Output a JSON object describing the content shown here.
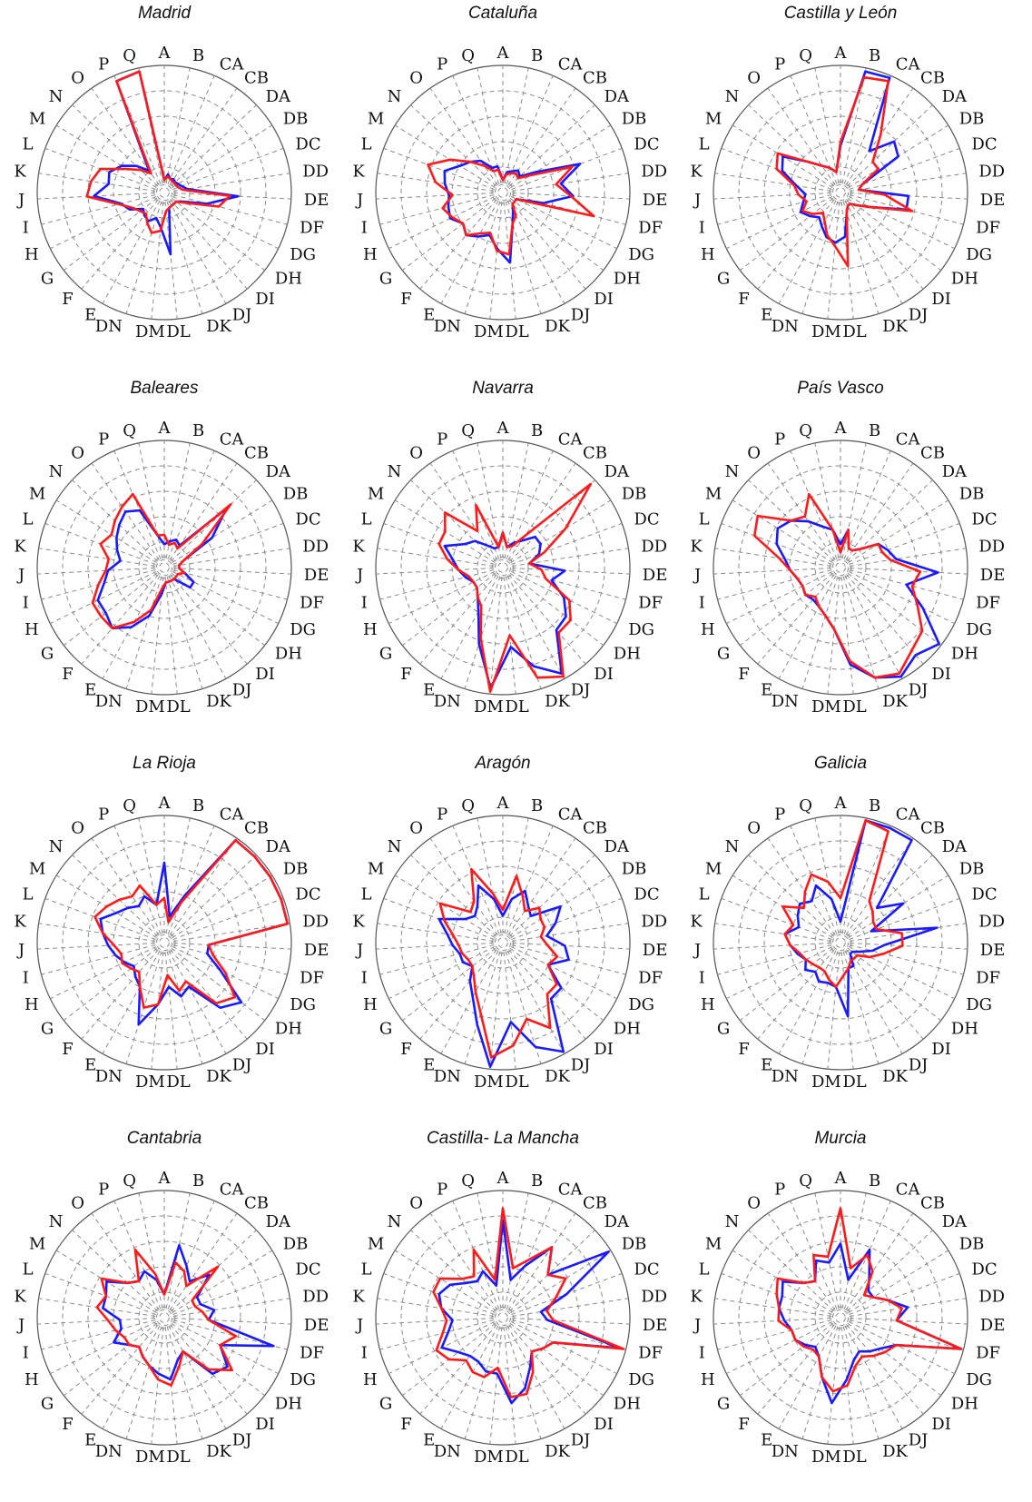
{
  "header_text": "",
  "chart_data": {
    "type": "radar",
    "axes": [
      "A",
      "B",
      "CA",
      "CB",
      "DA",
      "DB",
      "DC",
      "DD",
      "DE",
      "DF",
      "DG",
      "DH",
      "DI",
      "DJ",
      "DK",
      "DL",
      "DM",
      "DN",
      "E",
      "F",
      "G",
      "H",
      "I",
      "J",
      "K",
      "L",
      "M",
      "N",
      "O",
      "P",
      "Q"
    ],
    "rmax": 1.0,
    "rings": 5,
    "grid": true,
    "colors": {
      "series_1": "#1a1aff",
      "series_2": "#ff1a1a"
    },
    "panels": [
      {
        "title": "Madrid",
        "series": [
          {
            "color": "#1a1aff",
            "values": [
              0.03,
              0.08,
              0.05,
              0.06,
              0.05,
              0.06,
              0.08,
              0.12,
              0.55,
              0.3,
              0.1,
              0.05,
              0.05,
              0.05,
              0.06,
              0.45,
              0.22,
              0.15,
              0.2,
              0.18,
              0.15,
              0.25,
              0.3,
              0.52,
              0.4,
              0.42,
              0.35,
              0.25,
              0.15,
              0.95,
              0.97
            ]
          },
          {
            "color": "#ff1a1a",
            "values": [
              0.03,
              0.06,
              0.05,
              0.04,
              0.04,
              0.04,
              0.05,
              0.08,
              0.48,
              0.4,
              0.12,
              0.05,
              0.05,
              0.05,
              0.06,
              0.08,
              0.25,
              0.28,
              0.22,
              0.16,
              0.18,
              0.22,
              0.32,
              0.58,
              0.55,
              0.5,
              0.3,
              0.2,
              0.12,
              0.95,
              0.97
            ]
          }
        ]
      },
      {
        "title": "Cataluña",
        "series": [
          {
            "color": "#1a1aff",
            "values": [
              0.03,
              0.1,
              0.12,
              0.15,
              0.12,
              0.25,
              0.62,
              0.42,
              0.52,
              0.28,
              0.05,
              0.05,
              0.05,
              0.1,
              0.2,
              0.52,
              0.4,
              0.3,
              0.35,
              0.4,
              0.35,
              0.42,
              0.4,
              0.38,
              0.42,
              0.45,
              0.35,
              0.3,
              0.25,
              0.15,
              0.15
            ]
          },
          {
            "color": "#ff1a1a",
            "values": [
              0.03,
              0.08,
              0.1,
              0.12,
              0.1,
              0.2,
              0.55,
              0.38,
              0.5,
              0.72,
              0.05,
              0.05,
              0.05,
              0.15,
              0.2,
              0.45,
              0.42,
              0.28,
              0.32,
              0.4,
              0.35,
              0.4,
              0.45,
              0.35,
              0.5,
              0.6,
              0.45,
              0.3,
              0.2,
              0.12,
              0.12
            ]
          }
        ]
      },
      {
        "title": "Castilla y León",
        "series": [
          {
            "color": "#1a1aff",
            "values": [
              0.32,
              0.97,
              0.98,
              0.35,
              0.55,
              0.5,
              0.12,
              0.08,
              0.5,
              0.5,
              0.2,
              0.1,
              0.05,
              0.05,
              0.1,
              0.3,
              0.35,
              0.32,
              0.25,
              0.2,
              0.25,
              0.3,
              0.25,
              0.22,
              0.3,
              0.45,
              0.5,
              0.3,
              0.2,
              0.15,
              0.1
            ]
          },
          {
            "color": "#ff1a1a",
            "values": [
              0.35,
              0.92,
              0.95,
              0.52,
              0.3,
              0.3,
              0.12,
              0.08,
              0.3,
              0.55,
              0.2,
              0.1,
              0.05,
              0.05,
              0.1,
              0.55,
              0.38,
              0.3,
              0.2,
              0.15,
              0.22,
              0.28,
              0.22,
              0.28,
              0.32,
              0.5,
              0.55,
              0.3,
              0.2,
              0.15,
              0.1
            ]
          }
        ]
      },
      {
        "title": "Baleares",
        "series": [
          {
            "color": "#1a1aff",
            "values": [
              0.12,
              0.15,
              0.18,
              0.15,
              0.65,
              0.4,
              0.1,
              0.05,
              0.05,
              0.1,
              0.2,
              0.2,
              0.05,
              0.05,
              0.05,
              0.05,
              0.15,
              0.35,
              0.5,
              0.6,
              0.55,
              0.55,
              0.45,
              0.4,
              0.3,
              0.35,
              0.4,
              0.45,
              0.5,
              0.45,
              0.2
            ]
          },
          {
            "color": "#ff1a1a",
            "values": [
              0.2,
              0.12,
              0.15,
              0.12,
              0.7,
              0.3,
              0.1,
              0.05,
              0.05,
              0.1,
              0.05,
              0.05,
              0.05,
              0.05,
              0.05,
              0.05,
              0.1,
              0.3,
              0.45,
              0.6,
              0.6,
              0.6,
              0.5,
              0.42,
              0.4,
              0.5,
              0.45,
              0.5,
              0.55,
              0.6,
              0.2
            ]
          }
        ]
      },
      {
        "title": "Navarra",
        "series": [
          {
            "color": "#1a1aff",
            "values": [
              0.22,
              0.1,
              0.15,
              0.2,
              0.3,
              0.3,
              0.25,
              0.15,
              0.45,
              0.35,
              0.5,
              0.6,
              0.62,
              0.95,
              0.8,
              0.6,
              0.95,
              0.6,
              0.35,
              0.25,
              0.2,
              0.2,
              0.25,
              0.3,
              0.35,
              0.45,
              0.3,
              0.25,
              0.15,
              0.1,
              0.1
            ]
          },
          {
            "color": "#ff1a1a",
            "values": [
              0.22,
              0.1,
              0.12,
              0.25,
              0.95,
              0.55,
              0.3,
              0.15,
              0.25,
              0.3,
              0.55,
              0.65,
              0.65,
              0.98,
              0.9,
              0.5,
              0.98,
              0.55,
              0.3,
              0.25,
              0.2,
              0.2,
              0.22,
              0.3,
              0.4,
              0.5,
              0.5,
              0.6,
              0.3,
              0.5,
              0.1
            ]
          }
        ]
      },
      {
        "title": "País Vasco",
        "series": [
          {
            "color": "#1a1aff",
            "values": [
              0.12,
              0.25,
              0.1,
              0.1,
              0.15,
              0.3,
              0.35,
              0.4,
              0.75,
              0.5,
              0.7,
              0.98,
              0.9,
              0.98,
              0.9,
              0.75,
              0.45,
              0.35,
              0.3,
              0.28,
              0.3,
              0.28,
              0.3,
              0.35,
              0.4,
              0.5,
              0.55,
              0.5,
              0.4,
              0.3,
              0.25
            ]
          },
          {
            "color": "#ff1a1a",
            "values": [
              0.05,
              0.25,
              0.1,
              0.1,
              0.15,
              0.3,
              0.3,
              0.35,
              0.6,
              0.55,
              0.65,
              0.8,
              0.85,
              0.95,
              0.9,
              0.72,
              0.45,
              0.35,
              0.3,
              0.25,
              0.3,
              0.28,
              0.3,
              0.35,
              0.45,
              0.7,
              0.75,
              0.5,
              0.45,
              0.6,
              0.25
            ]
          }
        ]
      },
      {
        "title": "La Rioja",
        "series": [
          {
            "color": "#1a1aff",
            "values": [
              0.6,
              0.15,
              0.35,
              0.98,
              0.98,
              0.98,
              0.98,
              0.98,
              0.3,
              0.3,
              0.45,
              0.75,
              0.65,
              0.35,
              0.4,
              0.3,
              0.45,
              0.65,
              0.35,
              0.3,
              0.25,
              0.3,
              0.35,
              0.4,
              0.45,
              0.5,
              0.4,
              0.35,
              0.3,
              0.35,
              0.25
            ]
          },
          {
            "color": "#ff1a1a",
            "values": [
              0.3,
              0.1,
              0.3,
              0.98,
              0.98,
              0.98,
              0.98,
              0.98,
              0.3,
              0.35,
              0.5,
              0.68,
              0.6,
              0.3,
              0.35,
              0.2,
              0.45,
              0.5,
              0.35,
              0.25,
              0.28,
              0.32,
              0.3,
              0.35,
              0.45,
              0.55,
              0.5,
              0.45,
              0.4,
              0.45,
              0.25
            ]
          }
        ]
      },
      {
        "title": "Aragón",
        "series": [
          {
            "color": "#1a1aff",
            "values": [
              0.15,
              0.3,
              0.4,
              0.3,
              0.25,
              0.5,
              0.4,
              0.3,
              0.45,
              0.5,
              0.35,
              0.55,
              0.55,
              0.98,
              0.85,
              0.6,
              0.98,
              0.65,
              0.45,
              0.35,
              0.25,
              0.3,
              0.3,
              0.35,
              0.4,
              0.5,
              0.3,
              0.25,
              0.3,
              0.45,
              0.3
            ]
          },
          {
            "color": "#ff1a1a",
            "values": [
              0.2,
              0.5,
              0.35,
              0.25,
              0.35,
              0.3,
              0.3,
              0.25,
              0.3,
              0.4,
              0.35,
              0.5,
              0.5,
              0.75,
              0.6,
              0.8,
              0.9,
              0.55,
              0.4,
              0.3,
              0.25,
              0.25,
              0.28,
              0.3,
              0.35,
              0.45,
              0.55,
              0.3,
              0.35,
              0.6,
              0.35
            ]
          }
        ]
      },
      {
        "title": "Galicia",
        "series": [
          {
            "color": "#1a1aff",
            "values": [
              0.1,
              0.98,
              0.98,
              0.98,
              0.35,
              0.55,
              0.2,
              0.75,
              0.3,
              0.2,
              0.1,
              0.05,
              0.05,
              0.15,
              0.15,
              0.55,
              0.3,
              0.28,
              0.3,
              0.25,
              0.3,
              0.25,
              0.3,
              0.35,
              0.4,
              0.3,
              0.35,
              0.4,
              0.35,
              0.45,
              0.3
            ]
          },
          {
            "color": "#ff1a1a",
            "values": [
              0.3,
              0.98,
              0.95,
              0.35,
              0.3,
              0.25,
              0.25,
              0.45,
              0.45,
              0.3,
              0.2,
              0.1,
              0.1,
              0.1,
              0.15,
              0.2,
              0.3,
              0.25,
              0.2,
              0.2,
              0.22,
              0.25,
              0.28,
              0.35,
              0.4,
              0.35,
              0.5,
              0.35,
              0.45,
              0.55,
              0.45
            ]
          }
        ]
      },
      {
        "title": "Cantabria",
        "series": [
          {
            "color": "#1a1aff",
            "values": [
              0.12,
              0.55,
              0.4,
              0.3,
              0.45,
              0.25,
              0.25,
              0.35,
              0.3,
              0.88,
              0.45,
              0.6,
              0.55,
              0.25,
              0.3,
              0.45,
              0.4,
              0.35,
              0.3,
              0.25,
              0.3,
              0.4,
              0.3,
              0.3,
              0.45,
              0.45,
              0.5,
              0.35,
              0.3,
              0.35,
              0.25
            ]
          },
          {
            "color": "#ff1a1a",
            "values": [
              0.12,
              0.4,
              0.35,
              0.25,
              0.55,
              0.2,
              0.2,
              0.25,
              0.3,
              0.55,
              0.45,
              0.65,
              0.5,
              0.25,
              0.35,
              0.5,
              0.45,
              0.35,
              0.3,
              0.25,
              0.3,
              0.3,
              0.35,
              0.4,
              0.5,
              0.45,
              0.55,
              0.35,
              0.3,
              0.55,
              0.3
            ]
          }
        ]
      },
      {
        "title": "Castilla- La Mancha",
        "series": [
          {
            "color": "#1a1aff",
            "values": [
              0.75,
              0.25,
              0.4,
              0.65,
              0.45,
              0.98,
              0.5,
              0.25,
              0.3,
              0.95,
              0.4,
              0.35,
              0.3,
              0.4,
              0.55,
              0.65,
              0.4,
              0.4,
              0.35,
              0.35,
              0.4,
              0.5,
              0.4,
              0.35,
              0.45,
              0.5,
              0.45,
              0.35,
              0.3,
              0.35,
              0.2
            ]
          },
          {
            "color": "#ff1a1a",
            "values": [
              0.85,
              0.35,
              0.45,
              0.65,
              0.45,
              0.55,
              0.4,
              0.3,
              0.35,
              0.98,
              0.4,
              0.35,
              0.3,
              0.45,
              0.6,
              0.6,
              0.35,
              0.45,
              0.45,
              0.4,
              0.5,
              0.55,
              0.45,
              0.4,
              0.45,
              0.55,
              0.55,
              0.4,
              0.35,
              0.55,
              0.25
            ]
          }
        ]
      },
      {
        "title": "Murcia",
        "series": [
          {
            "color": "#1a1aff",
            "values": [
              0.55,
              0.25,
              0.55,
              0.35,
              0.25,
              0.25,
              0.35,
              0.5,
              0.4,
              0.98,
              0.45,
              0.35,
              0.3,
              0.25,
              0.3,
              0.45,
              0.65,
              0.45,
              0.3,
              0.25,
              0.3,
              0.35,
              0.35,
              0.4,
              0.45,
              0.45,
              0.5,
              0.35,
              0.3,
              0.45,
              0.4
            ]
          },
          {
            "color": "#ff1a1a",
            "values": [
              0.85,
              0.35,
              0.5,
              0.4,
              0.2,
              0.25,
              0.35,
              0.45,
              0.4,
              0.98,
              0.45,
              0.4,
              0.35,
              0.3,
              0.35,
              0.5,
              0.55,
              0.45,
              0.3,
              0.28,
              0.32,
              0.35,
              0.35,
              0.45,
              0.45,
              0.5,
              0.55,
              0.35,
              0.3,
              0.5,
              0.45
            ]
          }
        ]
      }
    ]
  }
}
